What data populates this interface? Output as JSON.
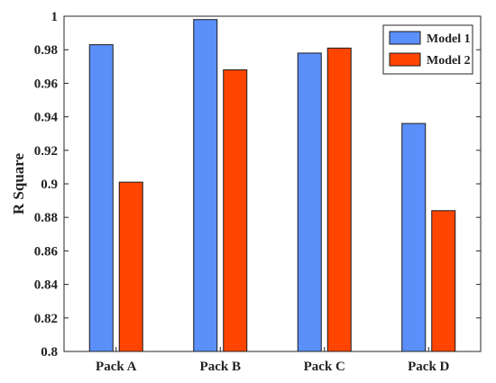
{
  "chart_data": {
    "type": "bar",
    "categories": [
      "Pack A",
      "Pack B",
      "Pack C",
      "Pack D"
    ],
    "series": [
      {
        "name": "Model 1",
        "color": "#5b8ff9",
        "values": [
          0.983,
          0.998,
          0.978,
          0.936
        ]
      },
      {
        "name": "Model 2",
        "color": "#ff4500",
        "values": [
          0.901,
          0.968,
          0.981,
          0.884
        ]
      }
    ],
    "title": "",
    "xlabel": "",
    "ylabel": "R Square",
    "ylim": [
      0.8,
      1.0
    ],
    "yticks": [
      0.8,
      0.82,
      0.84,
      0.86,
      0.88,
      0.9,
      0.92,
      0.94,
      0.96,
      0.98,
      1
    ],
    "ytick_labels": [
      "0.8",
      "0.82",
      "0.84",
      "0.86",
      "0.88",
      "0.9",
      "0.92",
      "0.94",
      "0.96",
      "0.98",
      "1"
    ],
    "grid": false,
    "legend_position": "top-right"
  }
}
